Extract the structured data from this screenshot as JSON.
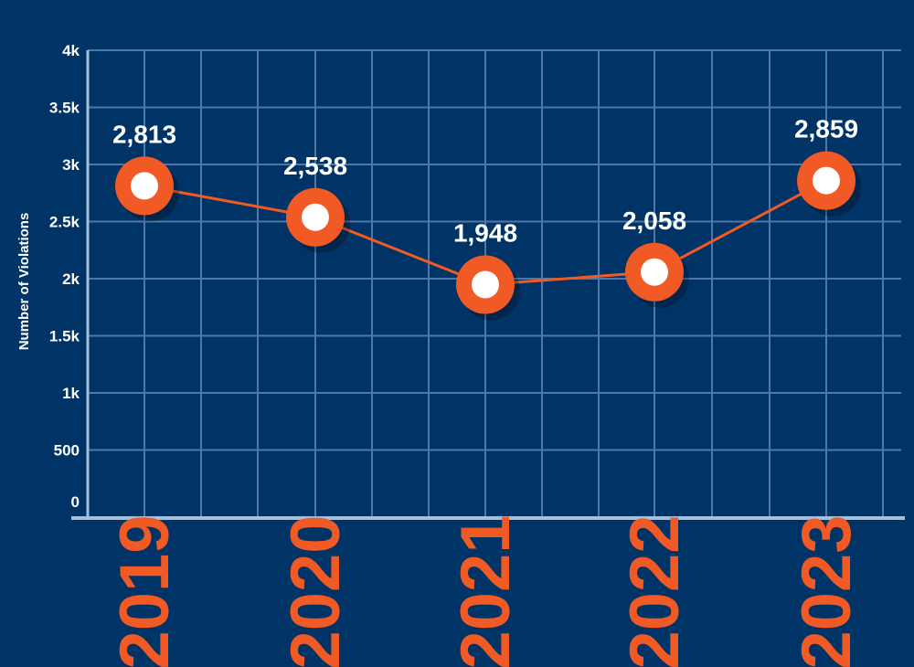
{
  "chart_data": {
    "type": "line",
    "categories": [
      "2019",
      "2020",
      "2021",
      "2022",
      "2023"
    ],
    "values": [
      2813,
      2538,
      1948,
      2058,
      2859
    ],
    "data_labels": [
      "2,813",
      "2,538",
      "1,948",
      "2,058",
      "2,859"
    ],
    "ylabel": "Number of Violations",
    "ylim": [
      0,
      4000
    ],
    "yticks": [
      0,
      500,
      1000,
      1500,
      2000,
      2500,
      3000,
      3500,
      4000
    ],
    "ytick_labels": [
      "0",
      "500",
      "1k",
      "1.5k",
      "2k",
      "2.5k",
      "3k",
      "3.5k",
      "4k"
    ],
    "grid": true,
    "colors": {
      "background": "#003366",
      "grid": "#4f78a8",
      "axis": "#a9bfd8",
      "line": "#f15a24",
      "marker_fill": "#ffffff",
      "category_label": "#f15a24",
      "text": "#ffffff"
    }
  }
}
